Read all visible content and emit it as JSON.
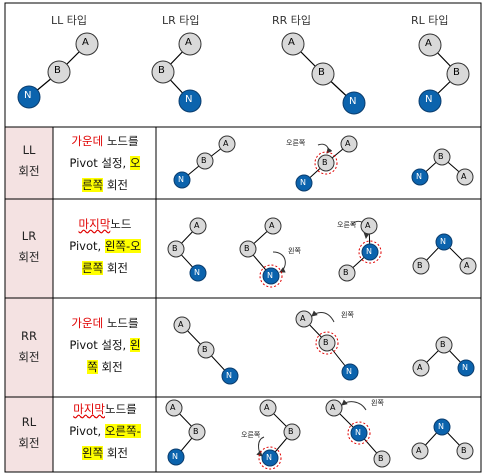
{
  "header": {
    "labels": [
      "LL 타입",
      "LR 타입",
      "RR 타입",
      "RL 타입"
    ]
  },
  "nodes": {
    "a": "A",
    "b": "B",
    "n": "N"
  },
  "rows": [
    {
      "label_top": "LL",
      "label_bottom": "회전",
      "desc": {
        "p1": "가운데",
        "p2": " 노드를",
        "p3": "Pivot 설정, ",
        "p4": "오",
        "p5": "른쪽",
        "p6": " 회전"
      },
      "arrow_label": "오른쪽"
    },
    {
      "label_top": "LR",
      "label_bottom": "회전",
      "desc": {
        "p1": "마지막",
        "p2": "노드",
        "p3": "Pivot, ",
        "p4": "왼쪽-오",
        "p5": "른쪽",
        "p6": " 회전"
      },
      "arrow_labels": [
        "왼쪽",
        "오른쪽"
      ]
    },
    {
      "label_top": "RR",
      "label_bottom": "회전",
      "desc": {
        "p1": "가운데",
        "p2": " 노드를",
        "p3": "Pivot 설정, ",
        "p4": "왼",
        "p5": "쪽",
        "p6": " 회전"
      },
      "arrow_label": "왼쪽"
    },
    {
      "label_top": "RL",
      "label_bottom": "회전",
      "desc": {
        "p1": "마지막",
        "p2": "노드를",
        "p3": "Pivot, ",
        "p4": "오른쪽-",
        "p5": "왼쪽",
        "p6": " 회전"
      },
      "arrow_labels": [
        "왼쪽",
        "오른쪽"
      ]
    }
  ],
  "colors": {
    "gray_node": "#d9d9d9",
    "blue_node": "#0b63ad",
    "label_bg": "#f4e2e2",
    "red_text": "#e00000",
    "highlight": "#ffff00"
  }
}
